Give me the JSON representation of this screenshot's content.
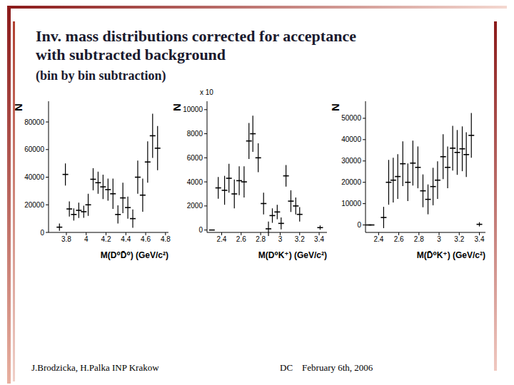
{
  "header": {
    "title": [
      "Inv. mass distributions corrected for acceptance",
      "with subtracted background"
    ],
    "subtitle": "(bin by bin subtraction)"
  },
  "footer": {
    "left": "J.Brodzicka, H.Palka  INP Krakow",
    "right": "DC    February 6th, 2006"
  },
  "chart_data": [
    {
      "type": "scatter",
      "xlabel": "M(D⁰D̄⁰) (GeV/c²)",
      "ylabel": "N",
      "marker": "cross",
      "color": "#000000",
      "xlim": [
        3.62,
        4.83
      ],
      "xticks": [
        3.8,
        4,
        4.2,
        4.4,
        4.6,
        4.8
      ],
      "ylim": [
        0,
        95000
      ],
      "yticks": [
        0,
        20000,
        40000,
        60000,
        80000
      ],
      "x": [
        3.73,
        3.79,
        3.83,
        3.875,
        3.925,
        3.975,
        4.02,
        4.07,
        4.12,
        4.17,
        4.22,
        4.27,
        4.32,
        4.37,
        4.42,
        4.47,
        4.52,
        4.57,
        4.62,
        4.67,
        4.72
      ],
      "values": [
        3800,
        42000,
        17000,
        13000,
        16000,
        15000,
        20000,
        38500,
        36000,
        33000,
        31000,
        28000,
        13000,
        25000,
        18000,
        10000,
        40000,
        27000,
        51000,
        70000,
        61000
      ],
      "errors": [
        2700,
        8000,
        5500,
        4400,
        5500,
        4400,
        8000,
        8000,
        8000,
        8800,
        8000,
        11000,
        6600,
        11000,
        8000,
        6600,
        12000,
        12000,
        15000,
        16000,
        16000
      ]
    },
    {
      "type": "scatter",
      "xlabel": "M(D⁰K⁺) (GeV/c²)",
      "ylabel": "N",
      "annotations": [
        "x 10"
      ],
      "marker": "cross",
      "color": "#000000",
      "xlim": [
        2.25,
        3.48
      ],
      "xticks": [
        2.4,
        2.6,
        2.8,
        3,
        3.2,
        3.4
      ],
      "ylim": [
        -200,
        10700
      ],
      "yticks": [
        0,
        2000,
        4000,
        6000,
        8000,
        10000
      ],
      "x": [
        2.3,
        2.365,
        2.43,
        2.475,
        2.53,
        2.58,
        2.63,
        2.68,
        2.72,
        2.775,
        2.83,
        2.88,
        2.92,
        2.97,
        3.01,
        3.06,
        3.11,
        3.16,
        3.2,
        3.41
      ],
      "values": [
        0,
        3500,
        3300,
        4300,
        3000,
        4100,
        4000,
        7400,
        8000,
        6000,
        2200,
        100,
        1200,
        1500,
        550,
        4500,
        2400,
        2000,
        1300,
        200
      ],
      "errors": [
        0,
        900,
        1200,
        1200,
        1200,
        1200,
        1300,
        1500,
        1500,
        1200,
        900,
        600,
        600,
        600,
        500,
        900,
        900,
        700,
        600,
        180
      ]
    },
    {
      "type": "scatter",
      "xlabel": "M(D̄⁰K⁺) (GeV/c²)",
      "ylabel": "N",
      "marker": "cross",
      "color": "#000000",
      "xlim": [
        2.27,
        3.46
      ],
      "xticks": [
        2.4,
        2.6,
        2.8,
        3,
        3.2,
        3.4
      ],
      "ylim": [
        -3500,
        58000
      ],
      "yticks": [
        0,
        10000,
        20000,
        30000,
        40000,
        50000
      ],
      "x": [
        2.3,
        2.33,
        2.45,
        2.5,
        2.545,
        2.59,
        2.64,
        2.69,
        2.74,
        2.79,
        2.84,
        2.89,
        2.94,
        2.985,
        3.04,
        3.085,
        3.135,
        3.18,
        3.23,
        3.27,
        3.32,
        3.4
      ],
      "values": [
        0,
        0,
        3500,
        20000,
        21000,
        22700,
        28700,
        20000,
        29000,
        27000,
        16000,
        12000,
        18000,
        21000,
        32000,
        27000,
        36000,
        34000,
        35700,
        33000,
        42000,
        300
      ],
      "errors": [
        0,
        0,
        5000,
        10500,
        10500,
        10500,
        10500,
        8800,
        10500,
        9800,
        7700,
        7000,
        8800,
        8800,
        10500,
        9800,
        10500,
        10500,
        10500,
        10500,
        10500,
        1000
      ]
    }
  ]
}
